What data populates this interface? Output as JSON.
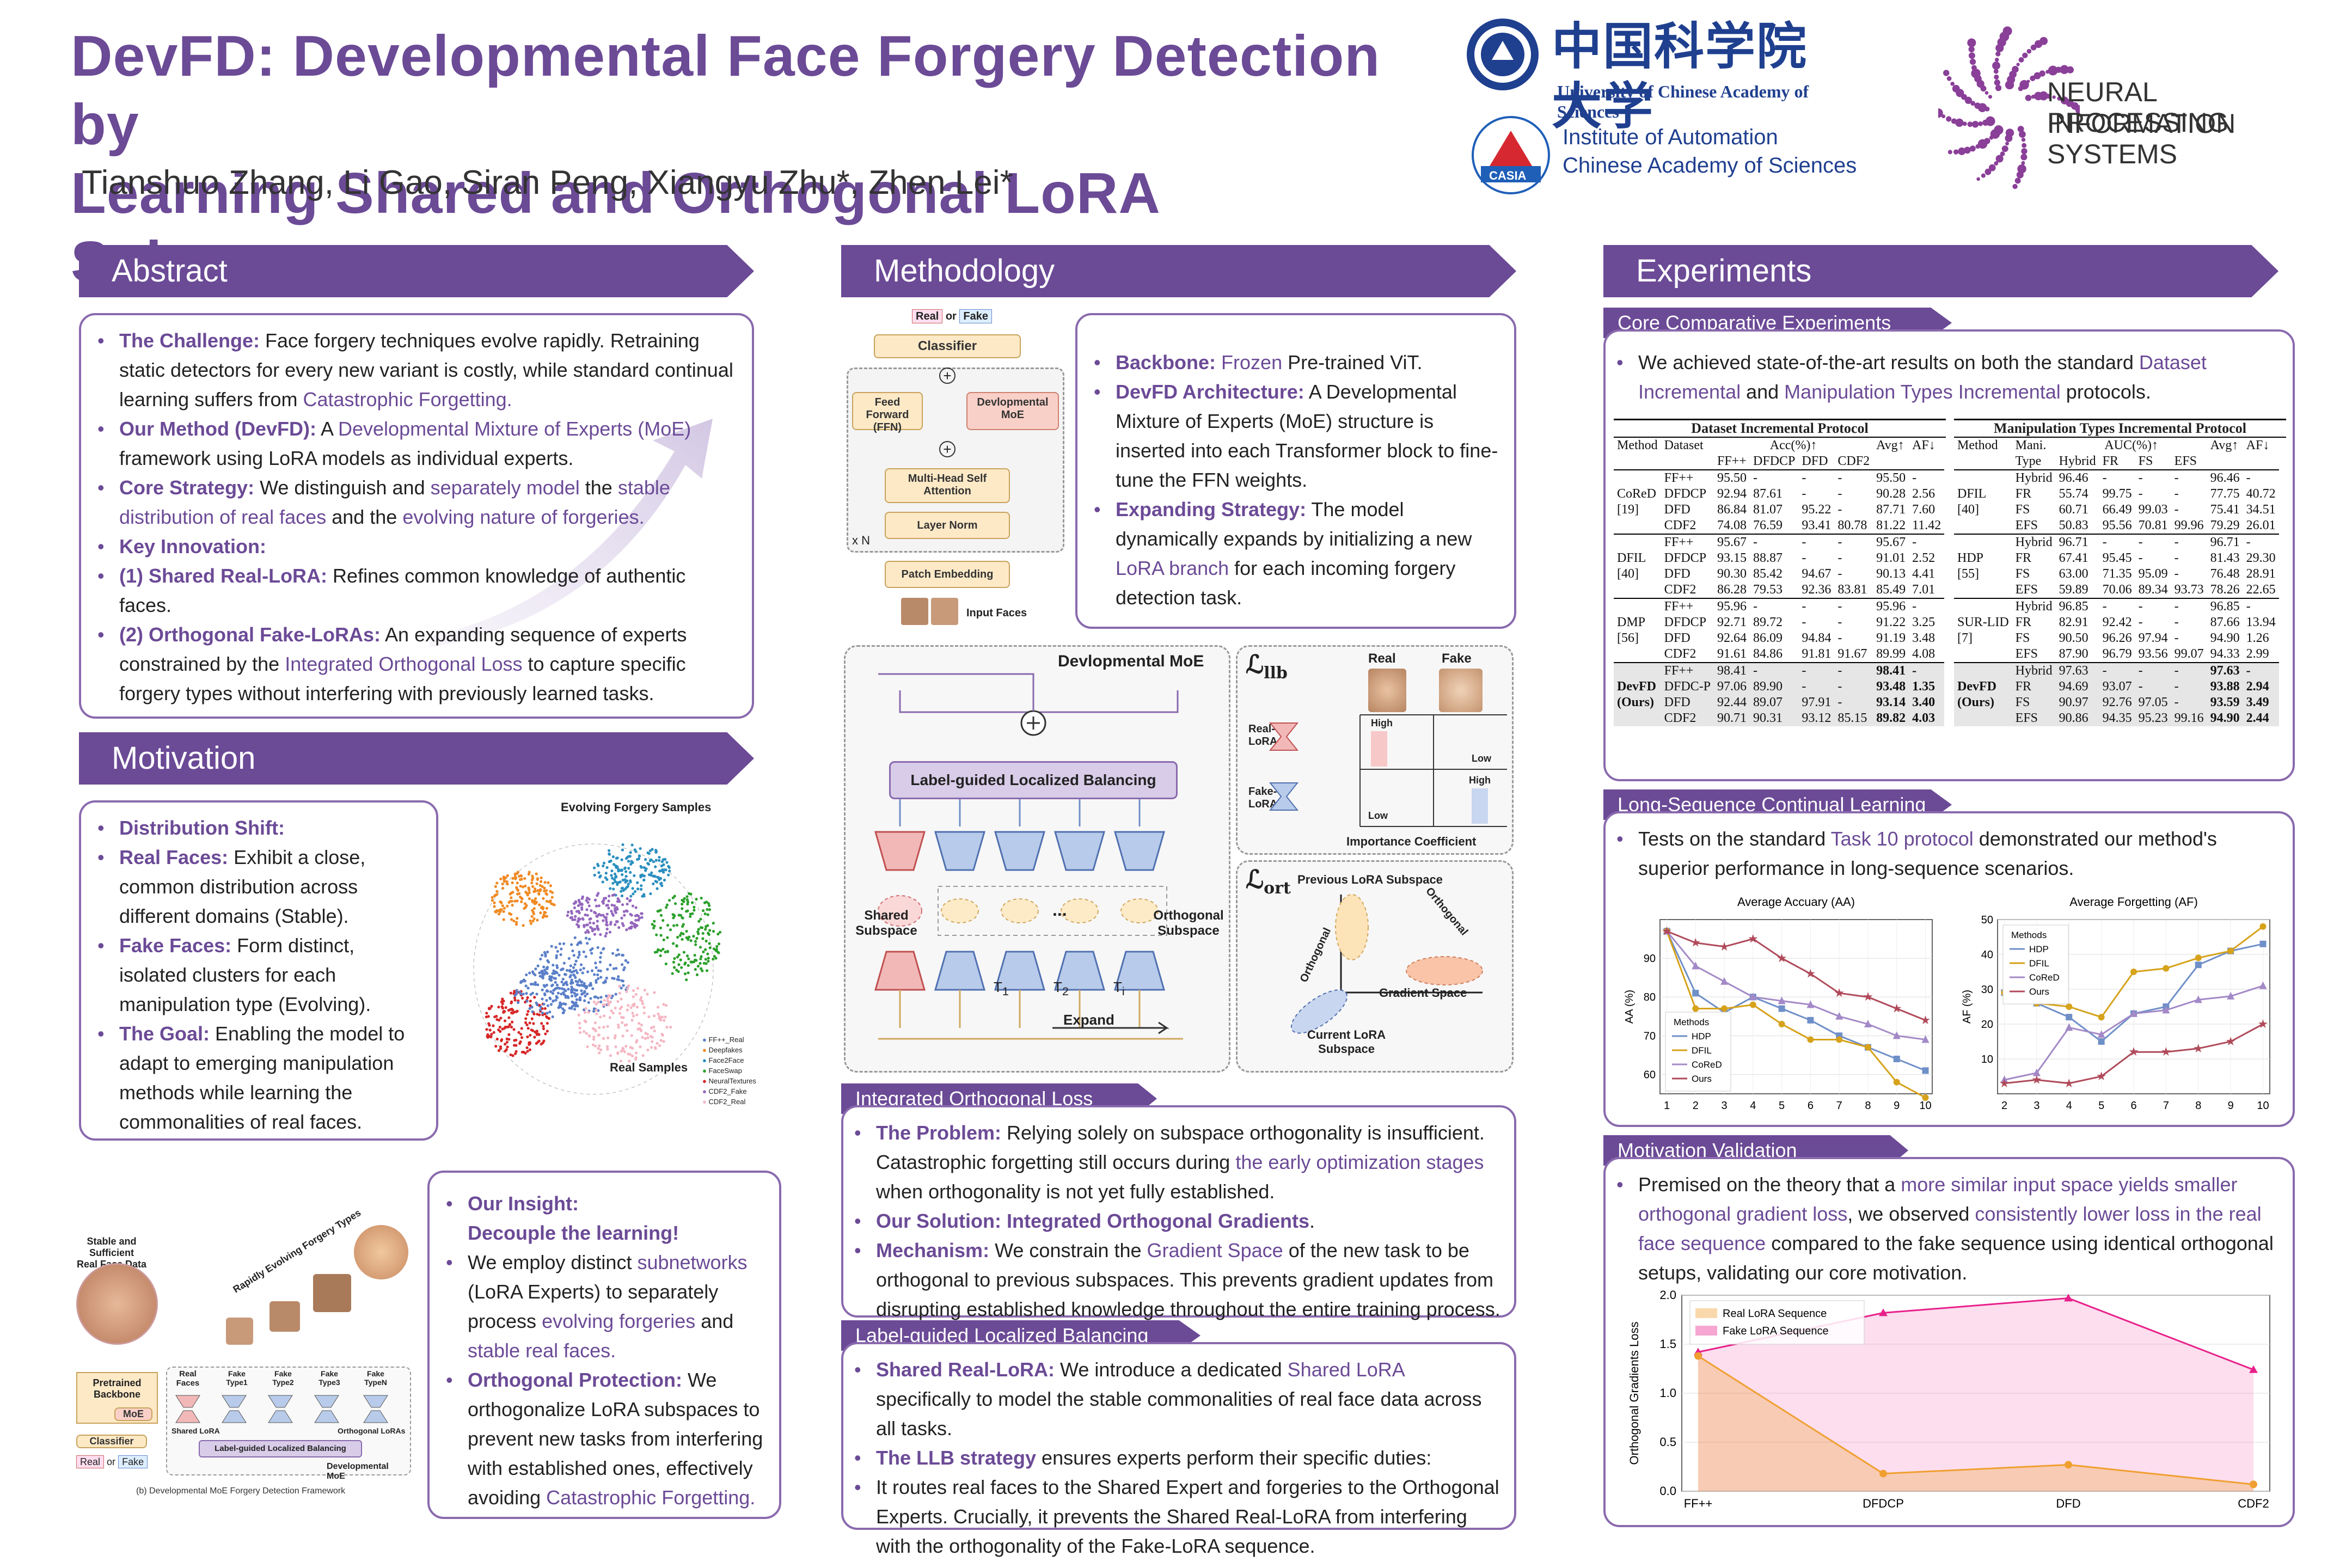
{
  "poster": {
    "title_line1": "DevFD: Developmental Face Forgery Detection by",
    "title_line2": "Learning Shared and Orthogonal LoRA Subspaces",
    "authors": "Tianshuo Zhang, Li Gao, Siran Peng, Xiangyu Zhu*, Zhen Lei*",
    "ucas": "University of  Chinese Academy of Sciences",
    "ucas_cn": "中国科学院大学",
    "casia_line1": "Institute of Automation",
    "casia_line2": "Chinese Academy of Sciences",
    "casia_badge": "CASIA",
    "neurips_line1": "NEURAL INFORMATION",
    "neurips_line2": "PROCESSING SYSTEMS"
  },
  "sections": {
    "abstract": "Abstract",
    "motivation": "Motivation",
    "methodology": "Methodology",
    "experiments": "Experiments",
    "core": "Core Comparative Experiments",
    "long": "Long-Sequence Continual Learning",
    "motval": "Motivation Validation",
    "iol": "Integrated Orthogonal Loss",
    "llb": "Label-guided Localized Balancing"
  },
  "abstract": {
    "b1_head": "The Challenge:",
    "b1_a": " Face forgery techniques evolve rapidly. Retraining static detectors for every new variant is costly, while standard continual learning suffers from ",
    "b1_hl": "Catastrophic Forgetting.",
    "b2_head": "Our Method (DevFD):",
    "b2_a": " A ",
    "b2_hl": "Developmental Mixture of Experts (MoE)",
    "b2_b": " framework using LoRA models as individual experts.",
    "b3_head": "Core Strategy:",
    "b3_a": " We distinguish and ",
    "b3_hl1": "separately model",
    "b3_b": " the ",
    "b3_hl2": "stable distribution of real faces",
    "b3_c": " and the ",
    "b3_hl3": "evolving nature of forgeries.",
    "b4_head": "Key Innovation:",
    "b5_head": "(1) Shared Real-LoRA:",
    "b5_a": " Refines common knowledge of authentic faces.",
    "b6_head": "(2) Orthogonal Fake-LoRAs:",
    "b6_a": " An expanding sequence of experts constrained by the ",
    "b6_hl": "Integrated Orthogonal Loss",
    "b6_b": " to capture specific forgery types without interfering with previously learned tasks."
  },
  "motivation": {
    "m1_head": "Distribution Shift:",
    "m2_head": "Real Faces:",
    "m2_a": " Exhibit a close, common distribution across different domains (Stable).",
    "m3_head": "Fake Faces:",
    "m3_a": " Form distinct, isolated clusters for each manipulation type (Evolving).",
    "m4_head": "The Goal:",
    "m4_a": " Enabling the model to adapt to emerging manipulation methods while learning the commonalities of real faces.",
    "scatter_title": "Evolving Forgery Samples",
    "scatter_real": "Real Samples",
    "legend": [
      "FF++_Real",
      "Deepfakes",
      "Face2Face",
      "FaceSwap",
      "NeuralTextures",
      "CDF2_Fake",
      "CDF2_Real"
    ],
    "legend_colors": [
      "#5b7fc8",
      "#f08a24",
      "#2a8fbf",
      "#2ca02c",
      "#d62728",
      "#9467bd",
      "#f4b6c2"
    ],
    "i_head": "Our Insight:",
    "i_head2": "Decouple the learning!",
    "i_a": "We employ distinct ",
    "i_hl1": "subnetworks",
    "i_b": " (LoRA Experts) to separately process ",
    "i_hl2": "evolving forgeries",
    "i_c": " and ",
    "i_hl3": "stable real faces.",
    "o_head": "Orthogonal Protection:",
    "o_a": " We orthogonalize LoRA subspaces to prevent new tasks from interfering with established ones, effectively avoiding ",
    "o_hl": "Catastrophic Forgetting.",
    "fw_stable": "Stable and Sufficient",
    "fw_realface": "Real Face Data",
    "fw_rapid": "Rapidly Evolving Forgery Types",
    "fw_pretrained": "Pretrained",
    "fw_backbone": "Backbone",
    "fw_moe": "MoE",
    "fw_classifier": "Classifier",
    "fw_real": "Real",
    "fw_or": "or",
    "fw_fake": "Fake",
    "fw_realfaces": "Real Faces",
    "fw_types": [
      "Fake Type1",
      "Fake Type2",
      "Fake Type3",
      "Fake TypeN"
    ],
    "fw_shared": "Shared LoRA",
    "fw_ortho": "Orthogonal LoRAs",
    "fw_llb": "Label-guided Localized Balancing",
    "fw_devmoe": "Developmental MoE",
    "fw_caption": "(b) Developmental MoE Forgery Detection Framework"
  },
  "method": {
    "arch": {
      "real": "Real",
      "or": "or",
      "fake": "Fake",
      "classifier": "Classifier",
      "ffn": "Feed Forward (FFN)",
      "devmoe": "Devlopmental MoE",
      "mhsa": "Multi-Head Self Attention",
      "ln": "Layer Norm",
      "xn": "x N",
      "pe": "Patch Embedding",
      "input": "Input Faces"
    },
    "b1_head": "Backbone:",
    "b1_hl": " Frozen",
    "b1_a": " Pre-trained ViT.",
    "b2_head": "DevFD Architecture:",
    "b2_a": " A Developmental Mixture of Experts (MoE) structure is inserted into each Transformer block to fine-tune the FFN weights.",
    "b3_head": "Expanding Strategy:",
    "b3_a": " The model dynamically expands by initializing a new ",
    "b3_hl": "LoRA branch",
    "b3_b": " for each incoming forgery detection task.",
    "moe": {
      "title": "Devlopmental MoE",
      "llb": "Label-guided Localized Balancing",
      "shared": "Shared Subspace",
      "ortho": "Orthogonal Subspace",
      "expand": "Expand",
      "dots": "...",
      "t1": "T",
      "t2": "T",
      "ti": "T",
      "s1": "1",
      "s2": "2",
      "si": "i"
    },
    "llbfig": {
      "loss": "ℒ",
      "sub": "llb",
      "real": "Real",
      "fake": "Fake",
      "reallora": "Real-LoRA",
      "fakelora": "Fake-LoRAs",
      "high": "High",
      "low": "Low",
      "caption": "Importance Coefficient"
    },
    "ortfig": {
      "loss": "ℒ",
      "sub": "ort",
      "prev": "Previous  LoRA Subspace",
      "orth1": "Orthogonal",
      "orth2": "Orthogonal",
      "grad": "Gradient Space",
      "cur1": "Current LoRA",
      "cur2": "Subspace"
    },
    "iol": {
      "p_head": "The Problem:",
      "p_a": " Relying solely on subspace orthogonality is insufficient. Catastrophic forgetting still occurs during ",
      "p_hl": "the early optimization stages",
      "p_b": " when orthogonality is not yet fully established.",
      "s_head": "Our Solution: Integrated Orthogonal Gradients",
      "s_a": ".",
      "m_head": "Mechanism:",
      "m_a": " We constrain the ",
      "m_hl": "Gradient Space",
      "m_b": " of the new task to be orthogonal to previous subspaces. This prevents gradient updates from disrupting established knowledge throughout the entire training process."
    },
    "llb": {
      "s_head": "Shared Real-LoRA:",
      "s_a": " We introduce a dedicated ",
      "s_hl": "Shared LoRA",
      "s_b": " specifically to model the stable commonalities of real face data across all tasks.",
      "l_head": "The LLB strategy",
      "l_a": " ensures experts perform their specific duties:",
      "r_a": "It routes real faces to the Shared Expert and forgeries to the Orthogonal Experts. Crucially, it prevents the Shared Real-LoRA from interfering with the orthogonality of the Fake-LoRA sequence."
    }
  },
  "experiments": {
    "core_a": "We achieved state-of-the-art results on both the standard ",
    "core_hl1": "Dataset Incremental",
    "core_b": " and ",
    "core_hl2": "Manipulation Types Incremental",
    "core_c": " protocols.",
    "long_a": "Tests on the standard ",
    "long_hl": "Task 10 protocol",
    "long_b": " demonstrated our method's superior performance in long-sequence scenarios.",
    "mv_a": "Premised on the theory that a ",
    "mv_hl1": "more similar input space yields smaller orthogonal gradient loss",
    "mv_b": ", we observed ",
    "mv_hl2": "consistently lower loss in the real face sequence",
    "mv_c": " compared to the fake sequence using identical orthogonal setups, validating our core motivation."
  },
  "table1": {
    "title": "Dataset Incremental Protocol",
    "h_method": "Method",
    "h_dataset": "Dataset",
    "h_acc": "Acc(%)↑",
    "cols": [
      "FF++",
      "DFDCP",
      "DFD",
      "CDF2"
    ],
    "h_avg": "Avg↑",
    "h_af": "AF↓",
    "groups": [
      {
        "m1": "CoReD",
        "m2": "[19]",
        "rows": [
          [
            "FF++",
            "95.50",
            "-",
            "-",
            "-",
            "95.50",
            "-"
          ],
          [
            "DFDCP",
            "92.94",
            "87.61",
            "-",
            "-",
            "90.28",
            "2.56"
          ],
          [
            "DFD",
            "86.84",
            "81.07",
            "95.22",
            "-",
            "87.71",
            "7.60"
          ],
          [
            "CDF2",
            "74.08",
            "76.59",
            "93.41",
            "80.78",
            "81.22",
            "11.42"
          ]
        ]
      },
      {
        "m1": "DFIL",
        "m2": "[40]",
        "rows": [
          [
            "FF++",
            "95.67",
            "-",
            "-",
            "-",
            "95.67",
            "-"
          ],
          [
            "DFDCP",
            "93.15",
            "88.87",
            "-",
            "-",
            "91.01",
            "2.52"
          ],
          [
            "DFD",
            "90.30",
            "85.42",
            "94.67",
            "-",
            "90.13",
            "4.41"
          ],
          [
            "CDF2",
            "86.28",
            "79.53",
            "92.36",
            "83.81",
            "85.49",
            "7.01"
          ]
        ]
      },
      {
        "m1": "DMP",
        "m2": "[56]",
        "rows": [
          [
            "FF++",
            "95.96",
            "-",
            "-",
            "-",
            "95.96",
            "-"
          ],
          [
            "DFDCP",
            "92.71",
            "89.72",
            "-",
            "-",
            "91.22",
            "3.25"
          ],
          [
            "DFD",
            "92.64",
            "86.09",
            "94.84",
            "-",
            "91.19",
            "3.48"
          ],
          [
            "CDF2",
            "91.61",
            "84.86",
            "91.81",
            "91.67",
            "89.99",
            "4.08"
          ]
        ]
      },
      {
        "m1": "DevFD",
        "m2": "(Ours)",
        "rows": [
          [
            "FF++",
            "98.41",
            "-",
            "-",
            "-",
            "98.41",
            "-"
          ],
          [
            "DFDC-P",
            "97.06",
            "89.90",
            "-",
            "-",
            "93.48",
            "1.35"
          ],
          [
            "DFD",
            "92.44",
            "89.07",
            "97.91",
            "-",
            "93.14",
            "3.40"
          ],
          [
            "CDF2",
            "90.71",
            "90.31",
            "93.12",
            "85.15",
            "89.82",
            "4.03"
          ]
        ]
      }
    ]
  },
  "table2": {
    "title": "Manipulation Types Incremental Protocol",
    "h_method": "Method",
    "h_mani1": "Mani.",
    "h_mani2": "Type",
    "h_auc": "AUC(%)↑",
    "cols": [
      "Hybrid",
      "FR",
      "FS",
      "EFS"
    ],
    "h_avg": "Avg↑",
    "h_af": "AF↓",
    "groups": [
      {
        "m1": "DFIL",
        "m2": "[40]",
        "rows": [
          [
            "Hybrid",
            "96.46",
            "-",
            "-",
            "-",
            "96.46",
            "-"
          ],
          [
            "FR",
            "55.74",
            "99.75",
            "-",
            "-",
            "77.75",
            "40.72"
          ],
          [
            "FS",
            "60.71",
            "66.49",
            "99.03",
            "-",
            "75.41",
            "34.51"
          ],
          [
            "EFS",
            "50.83",
            "95.56",
            "70.81",
            "99.96",
            "79.29",
            "26.01"
          ]
        ]
      },
      {
        "m1": "HDP",
        "m2": "[55]",
        "rows": [
          [
            "Hybrid",
            "96.71",
            "-",
            "-",
            "-",
            "96.71",
            "-"
          ],
          [
            "FR",
            "67.41",
            "95.45",
            "-",
            "-",
            "81.43",
            "29.30"
          ],
          [
            "FS",
            "63.00",
            "71.35",
            "95.09",
            "-",
            "76.48",
            "28.91"
          ],
          [
            "EFS",
            "59.89",
            "70.06",
            "89.34",
            "93.73",
            "78.26",
            "22.65"
          ]
        ]
      },
      {
        "m1": "SUR-LID",
        "m2": "[7]",
        "rows": [
          [
            "Hybrid",
            "96.85",
            "-",
            "-",
            "-",
            "96.85",
            "-"
          ],
          [
            "FR",
            "82.91",
            "92.42",
            "-",
            "-",
            "87.66",
            "13.94"
          ],
          [
            "FS",
            "90.50",
            "96.26",
            "97.94",
            "-",
            "94.90",
            "1.26"
          ],
          [
            "EFS",
            "87.90",
            "96.79",
            "93.56",
            "99.07",
            "94.33",
            "2.99"
          ]
        ]
      },
      {
        "m1": "DevFD",
        "m2": "(Ours)",
        "rows": [
          [
            "Hybrid",
            "97.63",
            "-",
            "-",
            "-",
            "97.63",
            "-"
          ],
          [
            "FR",
            "94.69",
            "93.07",
            "-",
            "-",
            "93.88",
            "2.94"
          ],
          [
            "FS",
            "90.97",
            "92.76",
            "97.05",
            "-",
            "93.59",
            "3.49"
          ],
          [
            "EFS",
            "90.86",
            "94.35",
            "95.23",
            "99.16",
            "94.90",
            "2.44"
          ]
        ]
      }
    ]
  },
  "chart_data": [
    {
      "type": "line",
      "title": "Average Accuary (AA)",
      "ylabel": "AA (%)",
      "xlabel": "",
      "x": [
        1,
        2,
        3,
        4,
        5,
        6,
        7,
        8,
        9,
        10
      ],
      "ylim": [
        55,
        100
      ],
      "yticks": [
        60,
        70,
        80,
        90
      ],
      "legend_title": "Methods",
      "series": [
        {
          "name": "HDP",
          "color": "#6f8fc8",
          "marker": "square",
          "values": [
            97,
            81,
            76,
            80,
            77,
            74,
            70,
            67,
            64,
            61
          ]
        },
        {
          "name": "DFIL",
          "color": "#d6a21a",
          "marker": "circle",
          "values": [
            97,
            77,
            77,
            78,
            73,
            69,
            69,
            67,
            58,
            54
          ]
        },
        {
          "name": "CoReD",
          "color": "#a389c7",
          "marker": "triangle",
          "values": [
            97,
            88,
            84,
            80,
            79,
            78,
            75,
            73,
            70,
            69
          ]
        },
        {
          "name": "Ours",
          "color": "#b04a5a",
          "marker": "star",
          "values": [
            97,
            94,
            93,
            95,
            90,
            86,
            81,
            80,
            77,
            74
          ]
        }
      ]
    },
    {
      "type": "line",
      "title": "Average Forgetting (AF)",
      "ylabel": "AF (%)",
      "xlabel": "",
      "x": [
        2,
        3,
        4,
        5,
        6,
        7,
        8,
        9,
        10
      ],
      "ylim": [
        0,
        50
      ],
      "yticks": [
        10,
        20,
        30,
        40,
        50
      ],
      "legend_title": "Methods",
      "series": [
        {
          "name": "HDP",
          "color": "#6f8fc8",
          "marker": "square",
          "values": [
            29,
            26,
            22,
            15,
            23,
            25,
            37,
            41,
            43
          ]
        },
        {
          "name": "DFIL",
          "color": "#d6a21a",
          "marker": "circle",
          "values": [
            29,
            26,
            25,
            22,
            35,
            36,
            39,
            41,
            48
          ]
        },
        {
          "name": "CoReD",
          "color": "#a389c7",
          "marker": "triangle",
          "values": [
            4,
            6,
            19,
            17,
            23,
            24,
            27,
            28,
            31
          ]
        },
        {
          "name": "Ours",
          "color": "#b04a5a",
          "marker": "star",
          "values": [
            3,
            4,
            3,
            5,
            12,
            12,
            13,
            15,
            20
          ]
        }
      ]
    },
    {
      "type": "area",
      "title": "",
      "ylabel": "Orthogonal Gradients Loss",
      "xlabel": "",
      "categories": [
        "FF++",
        "DFDCP",
        "DFD",
        "CDF2"
      ],
      "ylim": [
        0,
        2.0
      ],
      "yticks": [
        0.0,
        0.5,
        1.0,
        1.5,
        2.0
      ],
      "series": [
        {
          "name": "Real LoRA Sequence",
          "color": "#f0a030",
          "values": [
            1.38,
            0.18,
            0.27,
            0.07
          ]
        },
        {
          "name": "Fake LoRA Sequence",
          "color": "#e8208a",
          "values": [
            1.42,
            1.82,
            1.97,
            1.24
          ]
        }
      ]
    }
  ]
}
